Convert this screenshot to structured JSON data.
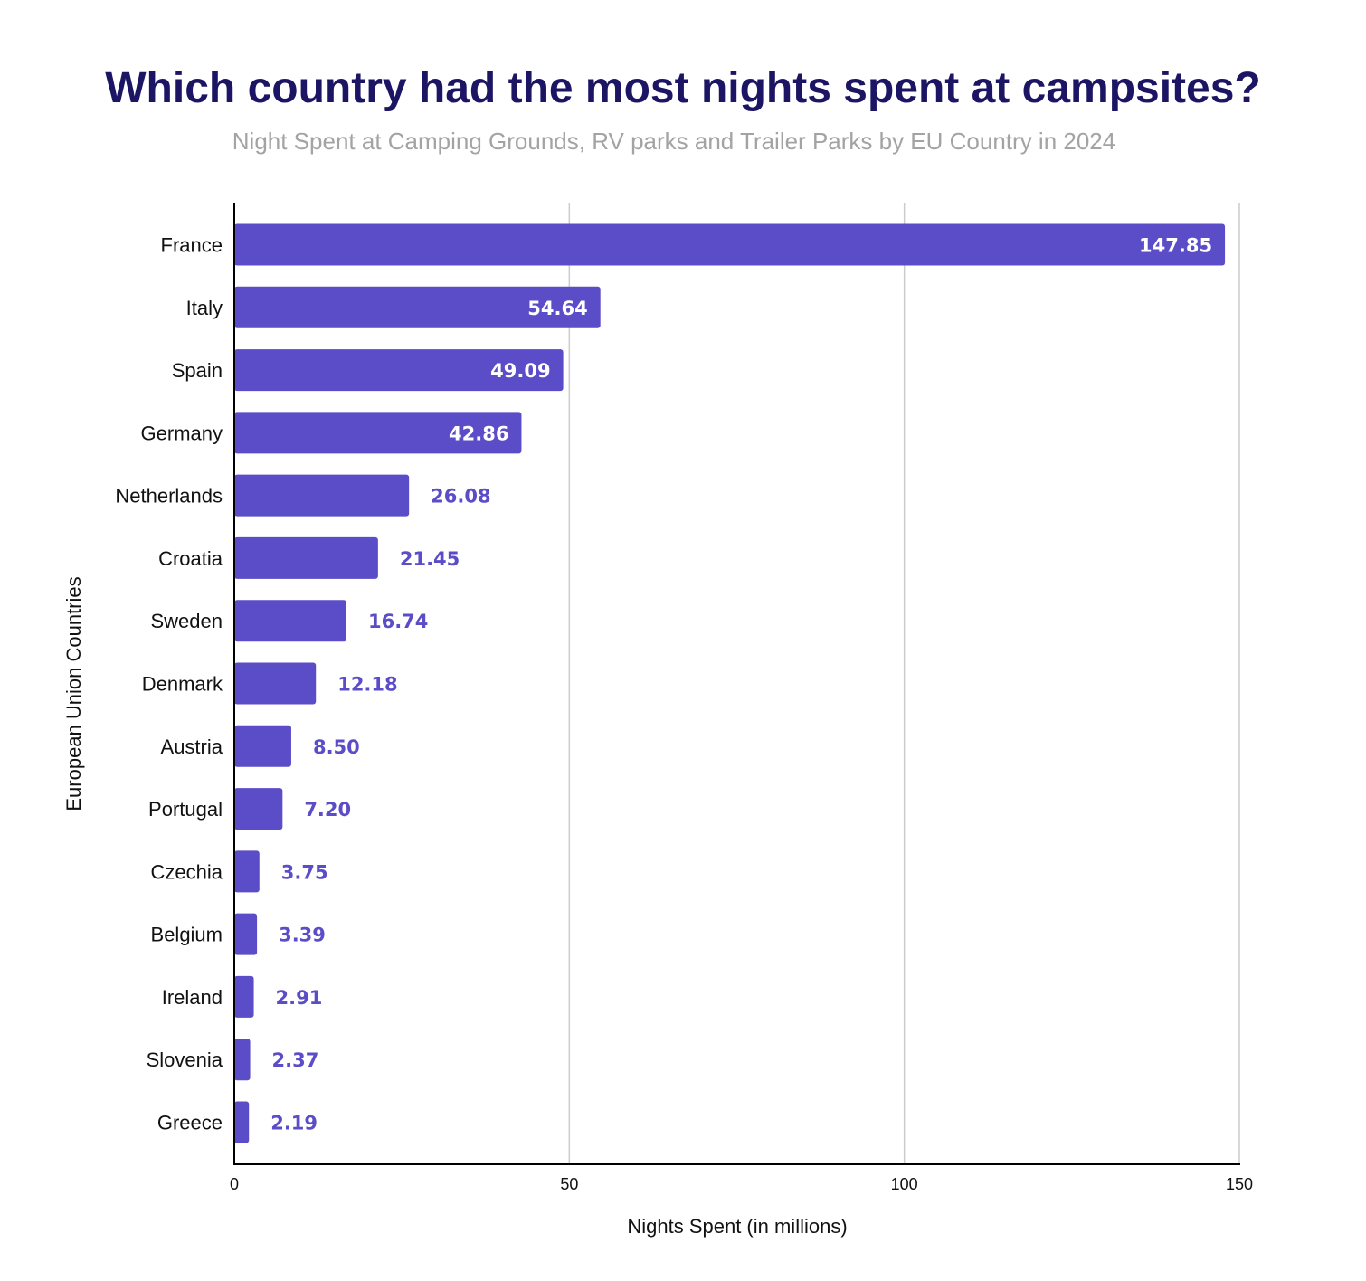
{
  "chart_data": {
    "type": "bar",
    "orientation": "horizontal",
    "title": "Which country had the most nights spent at campsites?",
    "subtitle": "Night Spent at Camping Grounds, RV parks and Trailer Parks by EU Country in 2024",
    "xlabel": "Nights Spent (in millions)",
    "ylabel": "European Union Countries",
    "xlim": [
      0,
      150
    ],
    "xticks": [
      0,
      50,
      100,
      150
    ],
    "grid": "vertical",
    "legend": "none",
    "categories": [
      "France",
      "Italy",
      "Spain",
      "Germany",
      "Netherlands",
      "Croatia",
      "Sweden",
      "Denmark",
      "Austria",
      "Portugal",
      "Czechia",
      "Belgium",
      "Ireland",
      "Slovenia",
      "Greece"
    ],
    "values": [
      147.85,
      54.64,
      49.09,
      42.86,
      26.08,
      21.45,
      16.74,
      12.18,
      8.5,
      7.2,
      3.75,
      3.39,
      2.91,
      2.37,
      2.19
    ],
    "value_labels": [
      "147.85",
      "54.64",
      "49.09",
      "42.86",
      "26.08",
      "21.45",
      "16.74",
      "12.18",
      "8.50",
      "7.20",
      "3.75",
      "3.39",
      "2.91",
      "2.37",
      "2.19"
    ],
    "colors": {
      "bar": "#5b4cc8",
      "value_label": "#5b4cc8",
      "value_label_inside": "#ffffff",
      "title": "#1b1564",
      "subtitle": "#a3a3a3",
      "grid": "#cccccc",
      "axis": "#000000"
    }
  }
}
